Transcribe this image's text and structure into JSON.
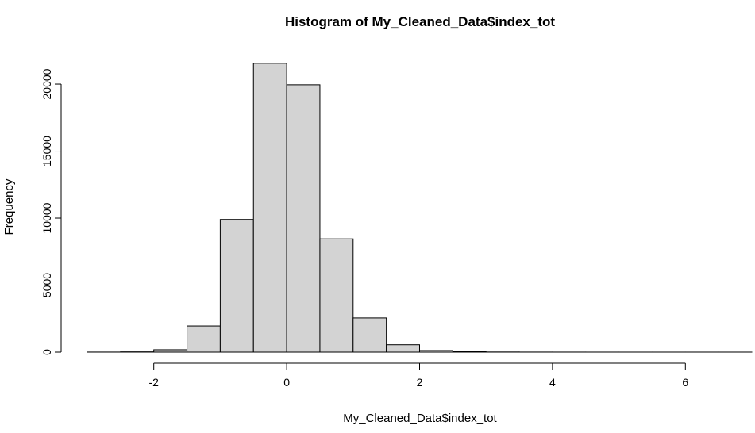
{
  "chart_data": {
    "type": "bar",
    "title": "Histogram of My_Cleaned_Data$index_tot",
    "xlabel": "My_Cleaned_Data$index_tot",
    "ylabel": "Frequency",
    "xlim": [
      -3,
      7
    ],
    "ylim": [
      0,
      21600
    ],
    "x_ticks": [
      -2,
      0,
      2,
      4,
      6
    ],
    "x_tick_labels": [
      "-2",
      "0",
      "2",
      "4",
      "6"
    ],
    "y_ticks": [
      0,
      5000,
      10000,
      15000,
      20000
    ],
    "y_tick_labels": [
      "0",
      "5000",
      "10000",
      "15000",
      "20000"
    ],
    "bin_edges": [
      -3.0,
      -2.5,
      -2.0,
      -1.5,
      -1.0,
      -0.5,
      0.0,
      0.5,
      1.0,
      1.5,
      2.0,
      2.5,
      3.0,
      3.5,
      4.0,
      4.5,
      5.0,
      5.5,
      6.0,
      6.5,
      7.0
    ],
    "values": [
      5,
      20,
      180,
      1950,
      9900,
      21550,
      19950,
      8450,
      2550,
      550,
      120,
      40,
      10,
      5,
      3,
      2,
      1,
      1,
      1,
      1
    ],
    "fill_color": "#d3d3d3",
    "border_color": "#000000",
    "grid": false
  }
}
